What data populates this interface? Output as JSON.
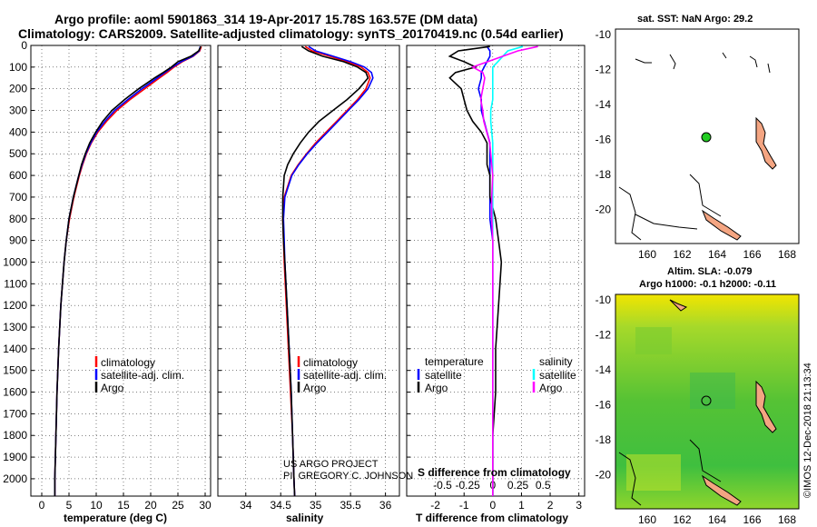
{
  "header": {
    "line1": "Argo profile: aoml 5901863_314 19-Apr-2017 15.78S 163.57E (DM data)",
    "line2": "Climatology: CARS2009. Satellite-adjusted climatology: synTS_20170419.nc (0.54d earlier)"
  },
  "credits": {
    "project": "US ARGO PROJECT",
    "pi": "PI: GREGORY C. JOHNSON",
    "imos": "©IMOS 12-Dec-2018 21:13:34"
  },
  "colors": {
    "climatology": "#ff0000",
    "satellite": "#0000ff",
    "argo": "#000000",
    "sal_satellite": "#00ffff",
    "sal_climatology": "#ff00ff",
    "marker": "#22cc22",
    "land": "#f4a582"
  },
  "legends": {
    "temp_panel": [
      "climatology",
      "satellite-adj. clim.",
      "Argo"
    ],
    "sal_panel": [
      "climatology",
      "satellite-adj. clim.",
      "Argo"
    ],
    "diff_temperature_head": "temperature",
    "diff_temperature": [
      "satellite",
      "Argo"
    ],
    "diff_salinity_head": "salinity",
    "diff_salinity": [
      "satellite",
      "Argo"
    ]
  },
  "map_top": {
    "title": "sat. SST: NaN Argo: 29.2",
    "xticks": [
      "160",
      "162",
      "164",
      "166",
      "168"
    ],
    "yticks": [
      "-10",
      "-12",
      "-14",
      "-16",
      "-18",
      "-20"
    ]
  },
  "map_bottom": {
    "title1": "Altim. SLA: -0.079",
    "title2": "Argo h1000: -0.1 h2000: -0.11",
    "xticks": [
      "160",
      "162",
      "164",
      "166",
      "168"
    ],
    "yticks": [
      "-10",
      "-12",
      "-14",
      "-16",
      "-18",
      "-20"
    ]
  },
  "chart_data": [
    {
      "type": "line",
      "xlabel": "temperature (deg C)",
      "ylabel": "",
      "xlim": [
        -2,
        31
      ],
      "ylim": [
        2080,
        0
      ],
      "xticks": [
        0,
        5,
        10,
        15,
        20,
        25,
        30
      ],
      "yticks": [
        0,
        100,
        200,
        300,
        400,
        500,
        600,
        700,
        800,
        900,
        1000,
        1100,
        1200,
        1300,
        1400,
        1500,
        1600,
        1700,
        1800,
        1900,
        2000
      ],
      "y": [
        5,
        25,
        50,
        75,
        100,
        125,
        150,
        200,
        250,
        300,
        350,
        400,
        450,
        500,
        550,
        600,
        700,
        800,
        900,
        1000,
        1200,
        1400,
        1600,
        1800,
        2000,
        2080
      ],
      "series": [
        {
          "name": "climatology",
          "values": [
            29.3,
            29.0,
            27.8,
            25.8,
            24.3,
            23.0,
            21.6,
            18.9,
            16.2,
            13.8,
            11.9,
            10.3,
            9.1,
            8.2,
            7.5,
            6.9,
            5.9,
            5.1,
            4.5,
            4.1,
            3.5,
            3.1,
            2.8,
            2.6,
            2.4,
            2.4
          ]
        },
        {
          "name": "satellite-adj. clim.",
          "values": [
            29.1,
            28.9,
            27.7,
            25.6,
            24.0,
            22.6,
            21.2,
            18.4,
            15.8,
            13.4,
            11.6,
            10.1,
            9.0,
            8.1,
            7.4,
            6.8,
            5.8,
            5.0,
            4.5,
            4.1,
            3.5,
            3.1,
            2.8,
            2.6,
            2.4,
            2.4
          ]
        },
        {
          "name": "Argo",
          "values": [
            29.2,
            28.8,
            27.4,
            25.0,
            23.8,
            22.3,
            20.7,
            17.8,
            15.2,
            12.9,
            11.2,
            9.9,
            8.8,
            8.0,
            7.3,
            6.8,
            5.8,
            5.0,
            4.5,
            4.1,
            3.5,
            3.1,
            2.8,
            2.6,
            2.4,
            2.4
          ]
        }
      ]
    },
    {
      "type": "line",
      "xlabel": "salinity",
      "xlim": [
        33.6,
        36.2
      ],
      "ylim": [
        2080,
        0
      ],
      "xticks": [
        34,
        34.5,
        35,
        35.5,
        36
      ],
      "y": [
        5,
        25,
        50,
        75,
        100,
        125,
        150,
        200,
        250,
        300,
        350,
        400,
        450,
        500,
        550,
        600,
        700,
        800,
        900,
        1000,
        1200,
        1400,
        1600,
        1800,
        2000,
        2080
      ],
      "series": [
        {
          "name": "climatology",
          "values": [
            34.85,
            34.95,
            35.2,
            35.45,
            35.65,
            35.75,
            35.78,
            35.72,
            35.6,
            35.45,
            35.3,
            35.15,
            35.0,
            34.87,
            34.75,
            34.65,
            34.55,
            34.53,
            34.54,
            34.55,
            34.58,
            34.61,
            34.64,
            34.67,
            34.69,
            34.7
          ]
        },
        {
          "name": "satellite-adj. clim.",
          "values": [
            34.9,
            35.0,
            35.25,
            35.5,
            35.7,
            35.8,
            35.82,
            35.75,
            35.62,
            35.47,
            35.32,
            35.17,
            35.02,
            34.88,
            34.76,
            34.66,
            34.56,
            34.54,
            34.55,
            34.56,
            34.59,
            34.62,
            34.65,
            34.67,
            34.69,
            34.7
          ]
        },
        {
          "name": "Argo",
          "values": [
            34.8,
            34.9,
            35.1,
            35.4,
            35.6,
            35.72,
            35.75,
            35.62,
            35.45,
            35.25,
            35.05,
            34.9,
            34.78,
            34.68,
            34.6,
            34.55,
            34.53,
            34.53,
            34.54,
            34.56,
            34.59,
            34.62,
            34.65,
            34.67,
            34.69,
            34.7
          ]
        }
      ]
    },
    {
      "type": "line",
      "xlabel": "T difference from climatology",
      "xlabel2": "S difference from climatology",
      "xlim": [
        -3,
        3.2
      ],
      "ylim": [
        2080,
        0
      ],
      "xticks": [
        -2,
        -1,
        0,
        1,
        2,
        3
      ],
      "xticks2": [
        "-0.5",
        "-0.25",
        "0",
        "0.25",
        "0.5"
      ],
      "xticks2_values": [
        -0.5,
        -0.25,
        0,
        0.25,
        0.5
      ],
      "y": [
        5,
        25,
        50,
        75,
        100,
        125,
        150,
        200,
        250,
        300,
        350,
        400,
        450,
        500,
        550,
        600,
        700,
        800,
        900,
        1000,
        1200,
        1400,
        1600,
        1800,
        2000,
        2080
      ],
      "series": [
        {
          "name": "temperature satellite",
          "values": [
            -0.2,
            -0.1,
            -0.1,
            -0.2,
            -0.3,
            -0.4,
            -0.4,
            -0.5,
            -0.4,
            -0.4,
            -0.3,
            -0.2,
            -0.1,
            -0.1,
            -0.1,
            -0.1,
            -0.1,
            -0.1,
            0,
            0,
            0,
            0,
            0,
            0,
            0,
            0
          ]
        },
        {
          "name": "temperature Argo",
          "values": [
            -0.1,
            -1.2,
            -1.5,
            -1.0,
            -0.6,
            -1.3,
            -1.5,
            -1.1,
            -1.0,
            -0.9,
            -0.7,
            -0.4,
            -0.2,
            -0.2,
            -0.2,
            -0.1,
            -0.1,
            0.1,
            0.2,
            0.3,
            0.2,
            0.1,
            0.1,
            0.0,
            0.0,
            0.0
          ]
        },
        {
          "name": "salinity satellite",
          "values": [
            0.3,
            0.15,
            0.1,
            0.05,
            0.0,
            0.0,
            0.0,
            0.0,
            0.0,
            -0.02,
            -0.02,
            -0.01,
            0,
            0,
            0,
            0,
            0,
            0,
            0,
            0,
            0,
            0,
            0,
            0,
            0,
            0
          ]
        },
        {
          "name": "salinity Argo",
          "values": [
            0.45,
            0.25,
            0.1,
            -0.05,
            -0.2,
            -0.1,
            -0.08,
            -0.1,
            -0.12,
            -0.1,
            -0.09,
            -0.06,
            -0.03,
            -0.02,
            -0.01,
            0,
            -0.01,
            -0.01,
            0,
            0,
            0,
            0,
            0,
            0,
            0,
            0
          ]
        }
      ]
    }
  ]
}
